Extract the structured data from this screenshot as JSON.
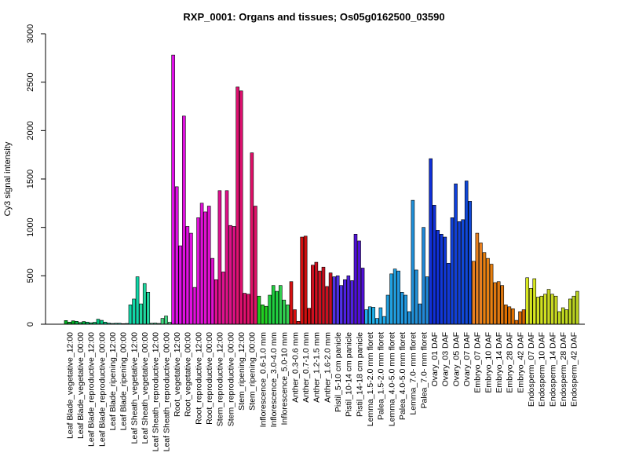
{
  "chart_data": {
    "type": "bar",
    "title": "RXP_0001: Organs and tissues; Os05g0162500_03590",
    "xlabel": "",
    "ylabel": "Cy3 signal intensity",
    "ylim": [
      0,
      3000
    ],
    "yticks": [
      0,
      500,
      1000,
      1500,
      2000,
      2500,
      3000
    ],
    "grid": false,
    "legend": "none",
    "categories": [
      "Leaf Blade_vegetative_12:00",
      "Leaf Blade_vegetative_00:00",
      "Leaf Blade_reproductive_12:00",
      "Leaf Blade_reproductive_00:00",
      "Leaf Blade_ripening_12:00",
      "Leaf Blade_ripening_00:00",
      "Leaf Sheath_vegetative_12:00",
      "Leaf Sheath_vegetative_00:00",
      "Leaf Sheath_reproductive_12:00",
      "Leaf Sheath_reproductive_00:00",
      "Root_vegetative_12:00",
      "Root_vegetative_00:00",
      "Root_reproductive_12:00",
      "Root_reproductive_00:00",
      "Stem_reproductive_12:00",
      "Stem_reproductive_00:00",
      "Stem_ripening_12:00",
      "Stem_ripening_00:00",
      "Inflorescence_0.6-1.0 mm",
      "Inflorescence_3.0-4.0 mm",
      "Inflorescence_5.0-10 mm",
      "Anther_0.3-0.6 mm",
      "Anther_0.7-1.0 mm",
      "Anther_1.2-1.5 mm",
      "Anther_1.6-2.0 mm",
      "Pistil_5-10 cm panicle",
      "Pistil_10-14 cm panicle",
      "Pistil_14-18 cm panicle",
      "Lemma_1.5-2.0 mm floret",
      "Palea_1.5-2.0 mm floret",
      "Lemma_4.0-5.0 mm floret",
      "Palea_4.0-5.0 mm floret",
      "Lemma_7.0- mm floret",
      "Palea_7.0- mm floret",
      "Ovary_01 DAF",
      "Ovary_03 DAF",
      "Ovary_05 DAF",
      "Ovary_07 DAF",
      "Embryo_07 DAF",
      "Embryo_10 DAF",
      "Embryo_14 DAF",
      "Embryo_28 DAF",
      "Embryo_42 DAF",
      "Endosperm_07 DAF",
      "Endosperm_10 DAF",
      "Endosperm_14 DAF",
      "Endosperm_28 DAF",
      "Endosperm_42 DAF"
    ],
    "group_colors": [
      "#00b020",
      "#00b840",
      "#00c060",
      "#00c880",
      "#00d0a0",
      "#00d8b8",
      "#10d8a8",
      "#20d8a0",
      "#30d890",
      "#40d880",
      "#e010e8",
      "#e010e0",
      "#e010d8",
      "#e010d0",
      "#e01090",
      "#e01088",
      "#e01070",
      "#e01068",
      "#20d020",
      "#20d040",
      "#30d050",
      "#d81010",
      "#d01010",
      "#d01020",
      "#c81020",
      "#5030e8",
      "#5020e0",
      "#5010d8",
      "#20b0e8",
      "#20a8e8",
      "#20a0e0",
      "#2098e0",
      "#2090d8",
      "#2088d8",
      "#1030d8",
      "#1038d8",
      "#1040d8",
      "#1048d8",
      "#e88020",
      "#e88010",
      "#e07810",
      "#e07000",
      "#d86800",
      "#d8e820",
      "#d0e020",
      "#c8d820",
      "#c0d820",
      "#b8d020"
    ],
    "replicates": [
      [
        38,
        22,
        35
      ],
      [
        30,
        18,
        28
      ],
      [
        22,
        15,
        20
      ],
      [
        52,
        40,
        22
      ],
      [
        12,
        8,
        10
      ],
      [
        10,
        6,
        8
      ],
      [
        200,
        260,
        490
      ],
      [
        210,
        420,
        330
      ],
      [
        10,
        12,
        8
      ],
      [
        60,
        85,
        20
      ],
      [
        2780,
        1420,
        810
      ],
      [
        2150,
        1010,
        940
      ],
      [
        380,
        1100,
        1250
      ],
      [
        1160,
        1220,
        680
      ],
      [
        460,
        1380,
        540
      ],
      [
        1380,
        1020,
        1010
      ],
      [
        2450,
        2410,
        320
      ],
      [
        310,
        1770,
        1220
      ],
      [
        290,
        200,
        185
      ],
      [
        300,
        400,
        340
      ],
      [
        400,
        250,
        200
      ],
      [
        440,
        150,
        30
      ],
      [
        900,
        910,
        165
      ],
      [
        610,
        640,
        550
      ],
      [
        590,
        390,
        530
      ],
      [
        490,
        500,
        400
      ],
      [
        460,
        500,
        450
      ],
      [
        930,
        860,
        580
      ],
      [
        150,
        180,
        175
      ],
      [
        60,
        170,
        80
      ],
      [
        300,
        520,
        570
      ],
      [
        550,
        330,
        300
      ],
      [
        130,
        1280,
        560
      ],
      [
        210,
        1000,
        490
      ],
      [
        1710,
        1230,
        970
      ],
      [
        930,
        900,
        630
      ],
      [
        1100,
        1450,
        1060
      ],
      [
        1080,
        1480,
        1270
      ],
      [
        650,
        940,
        840
      ],
      [
        740,
        680,
        620
      ],
      [
        430,
        440,
        400
      ],
      [
        200,
        180,
        160
      ],
      [
        40,
        130,
        150
      ],
      [
        480,
        370,
        470
      ],
      [
        280,
        290,
        310
      ],
      [
        360,
        310,
        290
      ],
      [
        130,
        170,
        150
      ],
      [
        260,
        290,
        340
      ]
    ]
  }
}
